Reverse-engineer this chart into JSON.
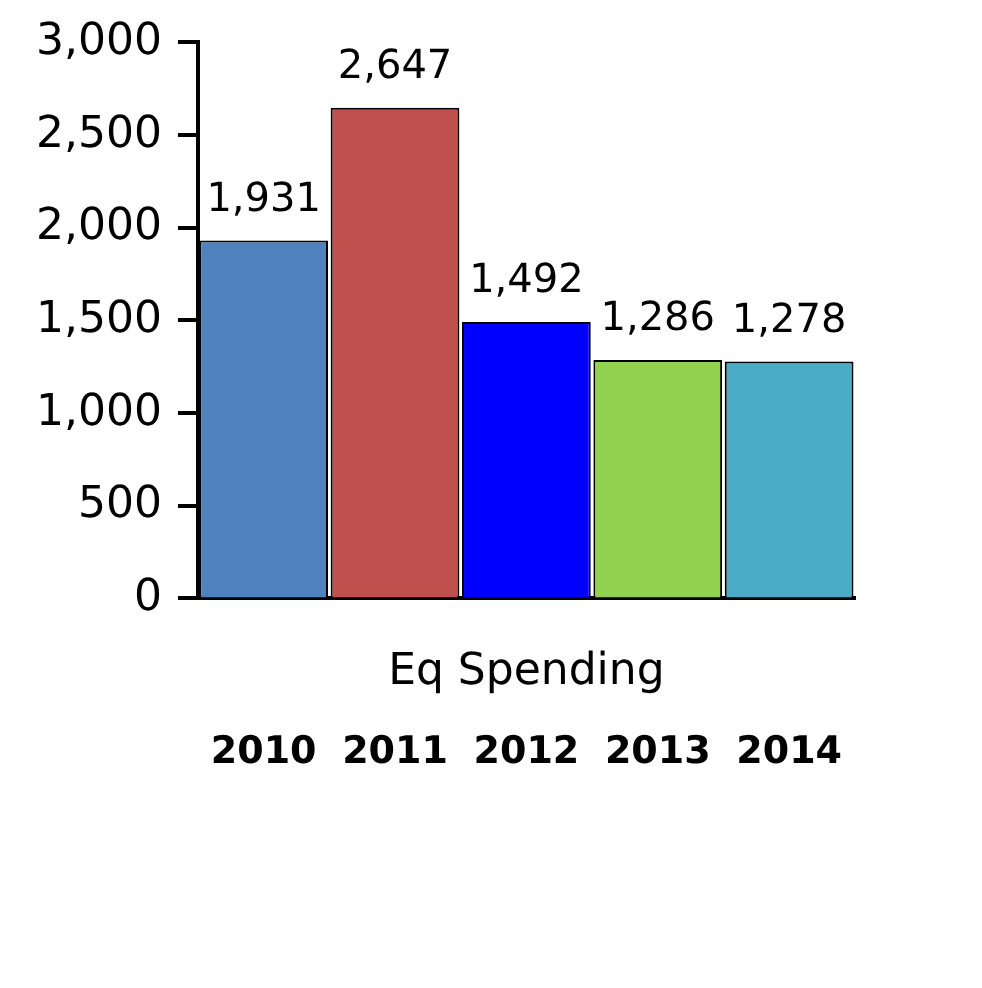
{
  "chart_data": {
    "type": "bar",
    "xlabel": "Eq Spending",
    "categories": [
      "2010",
      "2011",
      "2012",
      "2013",
      "2014"
    ],
    "values": [
      1931,
      2647,
      1492,
      1286,
      1278
    ],
    "colors": [
      "#4f81bd",
      "#c0504d",
      "#0000ff",
      "#92d050",
      "#4bacc6"
    ],
    "value_labels": [
      "1,931",
      "2,647",
      "1,492",
      "1,286",
      "1,278"
    ],
    "ylim": [
      0,
      3000
    ],
    "yticks": [
      {
        "value": 0,
        "label": "0"
      },
      {
        "value": 500,
        "label": "500"
      },
      {
        "value": 1000,
        "label": "1,000"
      },
      {
        "value": 1500,
        "label": "1,500"
      },
      {
        "value": 2000,
        "label": "2,000"
      },
      {
        "value": 2500,
        "label": "2,500"
      },
      {
        "value": 3000,
        "label": "3,000"
      }
    ],
    "grid": false
  }
}
